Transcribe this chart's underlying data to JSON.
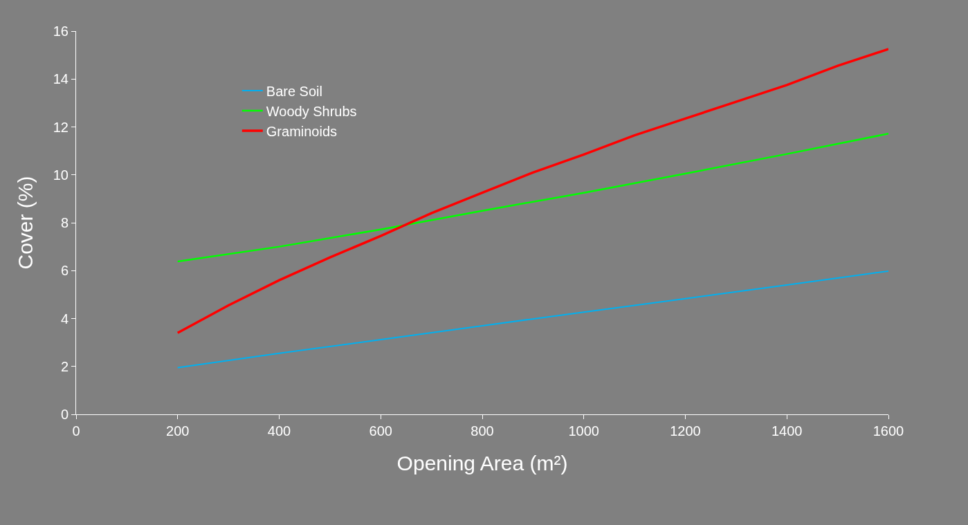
{
  "chart_data": {
    "type": "line",
    "xlabel": "Opening Area (m²)",
    "ylabel": "Cover (%)",
    "xlim": [
      0,
      1600
    ],
    "xticks": [
      0,
      200,
      400,
      600,
      800,
      1000,
      1200,
      1400,
      1600
    ],
    "ylim": [
      0,
      16
    ],
    "yticks": [
      0,
      2,
      4,
      6,
      8,
      10,
      12,
      14,
      16
    ],
    "grid": false,
    "legend": "top left",
    "marker": "none",
    "line_style": "solid",
    "series": [
      {
        "name": "Bare Soil",
        "color": "#00b0f0",
        "x": [
          200,
          400,
          600,
          800,
          1000,
          1200,
          1400,
          1600
        ],
        "values": [
          1.95,
          2.55,
          3.12,
          3.7,
          4.27,
          4.83,
          5.4,
          5.98
        ]
      },
      {
        "name": "Woody Shrubs",
        "color": "#00ff00",
        "x": [
          200,
          400,
          600,
          800,
          1000,
          1200,
          1400,
          1600
        ],
        "values": [
          6.38,
          7.0,
          7.72,
          8.5,
          9.25,
          10.05,
          10.87,
          11.72
        ]
      },
      {
        "name": "Graminoids",
        "color": "#ff0000",
        "x": [
          200,
          300,
          400,
          500,
          600,
          700,
          800,
          900,
          1000,
          1100,
          1200,
          1300,
          1400,
          1500,
          1600
        ],
        "values": [
          3.4,
          4.55,
          5.6,
          6.55,
          7.45,
          8.4,
          9.25,
          10.1,
          10.85,
          11.65,
          12.35,
          13.05,
          13.75,
          14.55,
          15.25
        ]
      }
    ]
  }
}
